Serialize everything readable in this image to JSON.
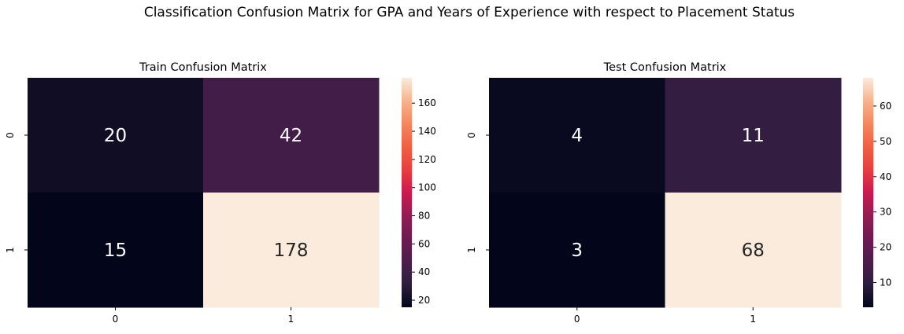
{
  "figure": {
    "title": "Classification Confusion Matrix for GPA and Years of Experience with respect to Placement Status"
  },
  "chart_data": [
    {
      "type": "heatmap",
      "title": "Train Confusion Matrix",
      "x_categories": [
        "0",
        "1"
      ],
      "y_categories": [
        "0",
        "1"
      ],
      "values": [
        [
          20,
          42
        ],
        [
          15,
          178
        ]
      ],
      "colorbar": {
        "min": 15,
        "max": 178,
        "ticks": [
          20,
          40,
          60,
          80,
          100,
          120,
          140,
          160
        ]
      },
      "colormap": "rocket",
      "grid": false
    },
    {
      "type": "heatmap",
      "title": "Test Confusion Matrix",
      "x_categories": [
        "0",
        "1"
      ],
      "y_categories": [
        "0",
        "1"
      ],
      "values": [
        [
          4,
          11
        ],
        [
          3,
          68
        ]
      ],
      "colorbar": {
        "min": 3,
        "max": 68,
        "ticks": [
          10,
          20,
          30,
          40,
          50,
          60
        ]
      },
      "colormap": "rocket",
      "grid": false
    }
  ]
}
